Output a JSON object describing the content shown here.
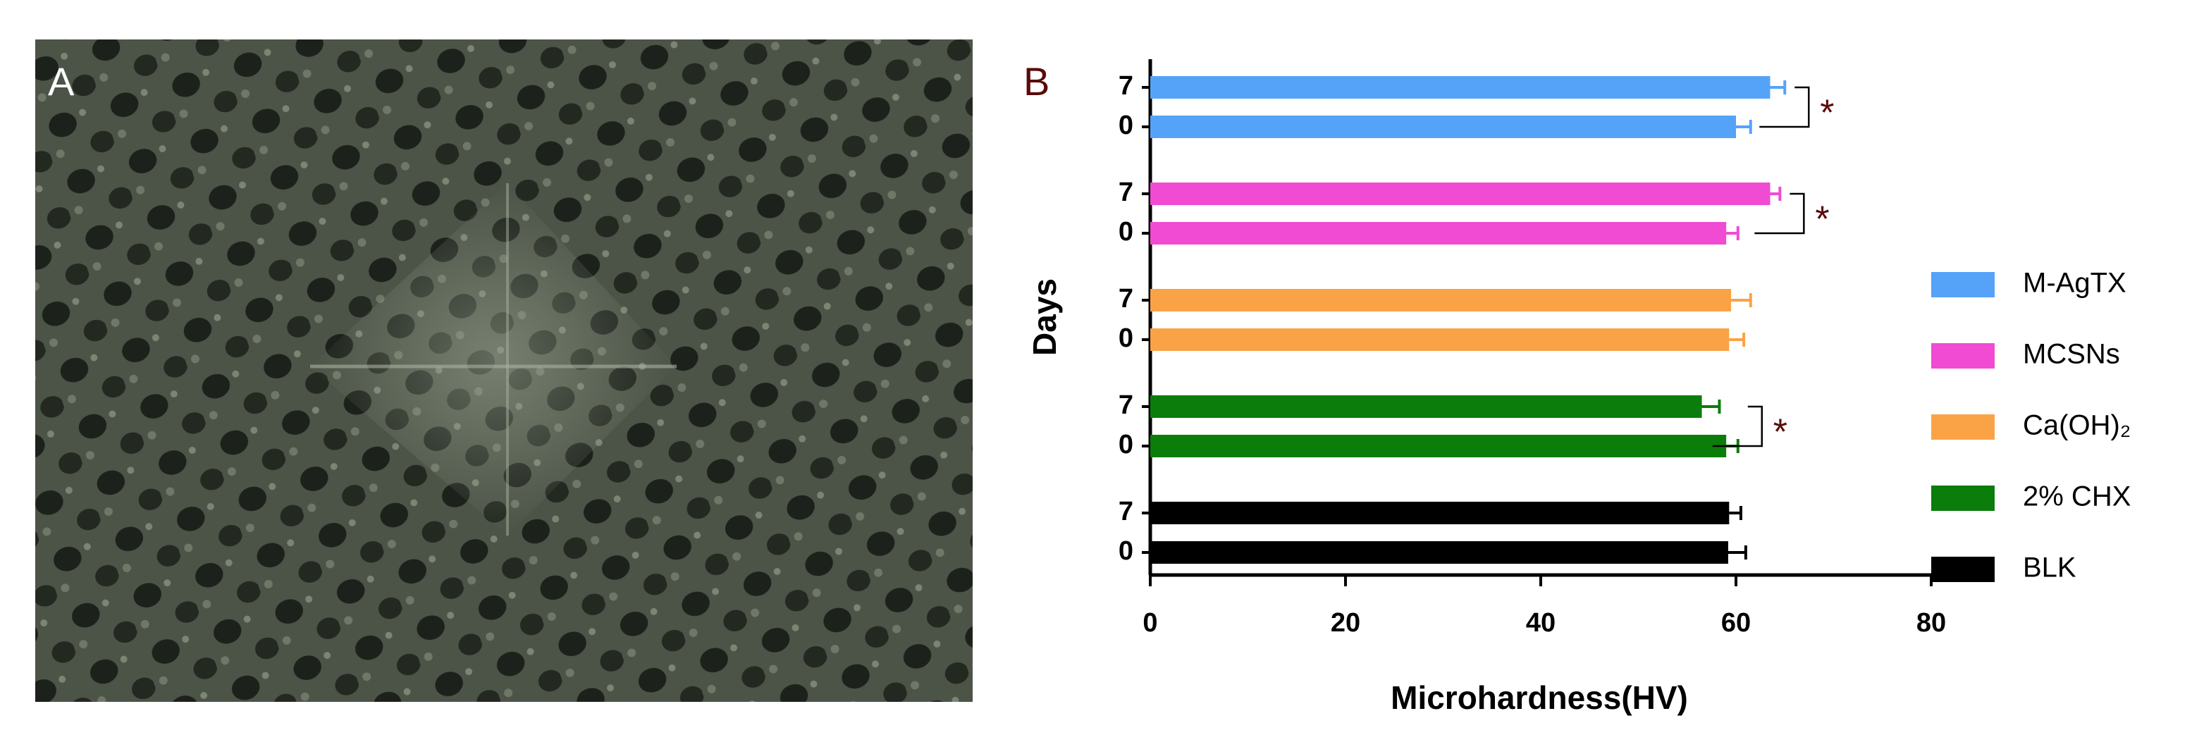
{
  "panel_a": {
    "label": "A"
  },
  "chart_data": {
    "type": "barh",
    "panel_label": "B",
    "xlabel": "Microhardness(HV)",
    "ylabel": "Days",
    "categories": [
      "0",
      "7"
    ],
    "series": [
      {
        "name": "BLK",
        "color": "#000000",
        "values": [
          59.2,
          59.3
        ],
        "errors": [
          1.8,
          1.2
        ]
      },
      {
        "name": "2% CHX",
        "color": "#0b7d0b",
        "values": [
          59,
          56.5
        ],
        "errors": [
          1.2,
          1.8
        ],
        "significance": "*"
      },
      {
        "name": "Ca(OH)₂",
        "color": "#f9a346",
        "values": [
          59.3,
          59.5
        ],
        "errors": [
          1.5,
          2
        ]
      },
      {
        "name": "MCSNs",
        "color": "#f04bd2",
        "values": [
          59,
          63.5
        ],
        "errors": [
          1.2,
          1
        ],
        "significance": "*"
      },
      {
        "name": "M-AgTX",
        "color": "#55a3f8",
        "values": [
          60,
          63.5
        ],
        "errors": [
          1.5,
          1.5
        ],
        "significance": "*"
      }
    ],
    "xlim": [
      0,
      80
    ],
    "xticks": [
      0,
      20,
      40,
      60,
      80
    ]
  }
}
